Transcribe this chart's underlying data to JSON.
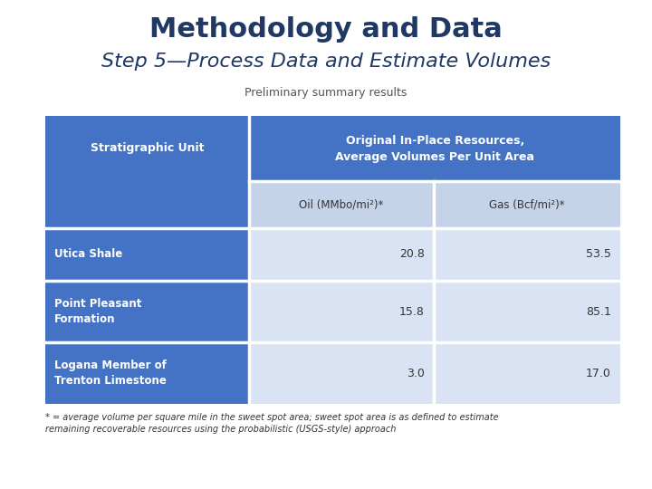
{
  "title": "Methodology and Data",
  "subtitle": "Step 5—Process Data and Estimate Volumes",
  "subtitle2": "Preliminary summary results",
  "background_color": "#ffffff",
  "title_color": "#1F3864",
  "subtitle_color": "#1F3864",
  "subtitle2_color": "#555555",
  "table_header_bg": "#4472C4",
  "table_subheader_bg": "#C5D3E8",
  "table_row_bg_dark": "#4472C4",
  "table_row_bg_light": "#DAE3F3",
  "rows": [
    {
      "label": "Utica Shale",
      "oil": "20.8",
      "gas": "53.5"
    },
    {
      "label": "Point Pleasant\nFormation",
      "oil": "15.8",
      "gas": "85.1"
    },
    {
      "label": "Logana Member of\nTrenton Limestone",
      "oil": "3.0",
      "gas": "17.0"
    }
  ],
  "col_header_1": "Original In-Place Resources,\nAverage Volumes Per Unit Area",
  "col_sub_1": "Oil (MMbo/mi²)*",
  "col_sub_2": "Gas (Bcf/mi²)*",
  "row_header": "Stratigraphic Unit",
  "footnote": "* = average volume per square mile in the sweet spot area; sweet spot area is as defined to estimate\nremaining recoverable resources using the probabilistic (USGS-style) approach"
}
